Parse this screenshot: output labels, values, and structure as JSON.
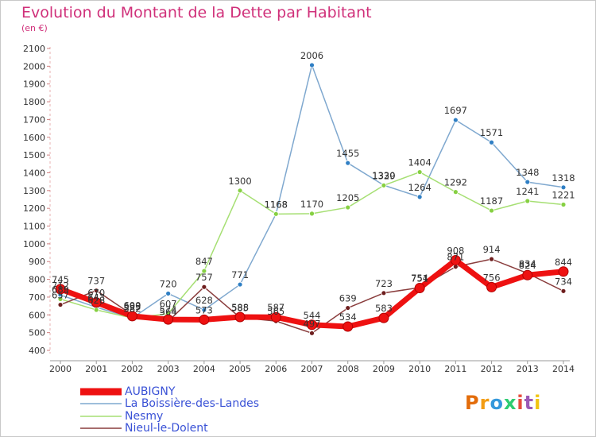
{
  "chart_data": {
    "type": "line",
    "title": "Evolution du Montant de la Dette par Habitant",
    "subtitle": "(en €)",
    "xlabel": "",
    "ylabel": "",
    "categories": [
      "2000",
      "2001",
      "2002",
      "2003",
      "2004",
      "2005",
      "2006",
      "2007",
      "2008",
      "2009",
      "2010",
      "2011",
      "2012",
      "2013",
      "2014"
    ],
    "ylim": [
      400,
      2100
    ],
    "yticks": [
      400,
      500,
      600,
      700,
      800,
      900,
      1000,
      1100,
      1200,
      1300,
      1400,
      1500,
      1600,
      1700,
      1800,
      1900,
      2000,
      2100
    ],
    "grid": false,
    "legend_position": "bottom-left",
    "series": [
      {
        "name": "AUBIGNY",
        "color": "#ee1111",
        "point_color": "#ee1111",
        "width": 7,
        "values": [
          745,
          670,
          593,
          574,
          573,
          588,
          587,
          544,
          534,
          583,
          751,
          908,
          756,
          824,
          844
        ],
        "labels": [
          "745",
          "670",
          "593",
          "574",
          "573",
          "588",
          "587",
          "544",
          "534",
          "583",
          "751",
          "908",
          "756",
          "824",
          "844"
        ]
      },
      {
        "name": "La Boissière-des-Landes",
        "color": "#7fa8cf",
        "point_color": "#2f7fc4",
        "width": 1.5,
        "values": [
          712,
          643,
          582,
          720,
          628,
          771,
          1168,
          2006,
          1455,
          1330,
          1264,
          1697,
          1571,
          1348,
          1318
        ],
        "labels": [
          "712",
          "643",
          "582",
          "720",
          "628",
          "771",
          "1168",
          "2006",
          "1455",
          "1330",
          "1264",
          "1697",
          "1571",
          "1348",
          "1318"
        ]
      },
      {
        "name": "Nesmy",
        "color": "#a6df73",
        "point_color": "#86d042",
        "width": 1.5,
        "values": [
          689,
          628,
          582,
          607,
          847,
          1300,
          1168,
          1170,
          1205,
          1329,
          1404,
          1292,
          1187,
          1241,
          1221
        ],
        "labels": [
          "689",
          "628",
          "582",
          "607",
          "847",
          "1300",
          "1168",
          "1170",
          "1205",
          "1329",
          "1404",
          "1292",
          "1187",
          "1241",
          "1221"
        ]
      },
      {
        "name": "Nieul-le-Dolent",
        "color": "#8a3d3d",
        "point_color": "#6e1e1e",
        "width": 1.5,
        "values": [
          657,
          737,
          600,
          564,
          757,
          585,
          565,
          497,
          639,
          723,
          754,
          871,
          914,
          834,
          734
        ],
        "labels": [
          "657",
          "737",
          "600",
          "564",
          "757",
          "585",
          "565",
          "497",
          "639",
          "723",
          "754",
          "871",
          "914",
          "834",
          "734"
        ]
      }
    ]
  },
  "legend": {
    "items": [
      "AUBIGNY",
      "La Boissière-des-Landes",
      "Nesmy",
      "Nieul-le-Dolent"
    ]
  },
  "brand": {
    "letters": [
      "P",
      "r",
      "o",
      "x",
      "i",
      "t",
      "i"
    ],
    "colors": [
      "#e36c0a",
      "#f39c12",
      "#3498db",
      "#2ecc71",
      "#e74c3c",
      "#9b59b6",
      "#f1c40f"
    ]
  }
}
